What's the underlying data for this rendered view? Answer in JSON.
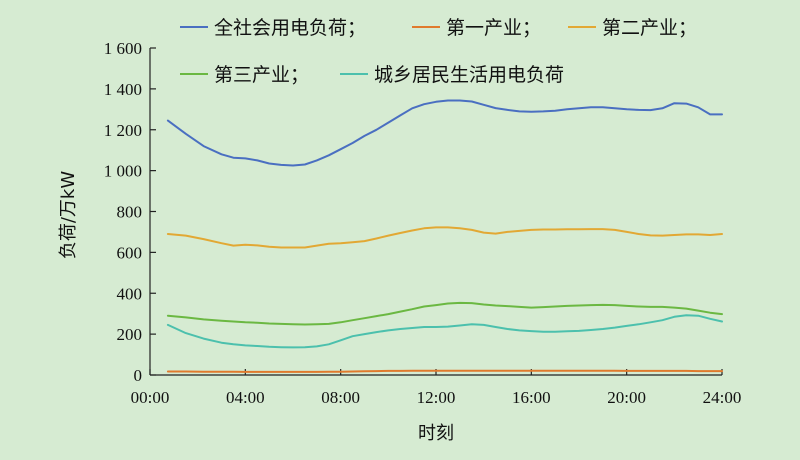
{
  "chart_data": {
    "type": "line",
    "xlabel": "时刻",
    "ylabel": "负荷/万kW",
    "x_ticks": [
      "00:00",
      "04:00",
      "08:00",
      "12:00",
      "16:00",
      "20:00",
      "24:00"
    ],
    "y_ticks": [
      "0",
      "200",
      "400",
      "600",
      "800",
      "1 000",
      "1 200",
      "1 400",
      "1 600"
    ],
    "xlim": [
      0,
      24
    ],
    "ylim": [
      0,
      1600
    ],
    "grid": false,
    "legend_position": "top",
    "legend_rows": [
      [
        "全社会用电负荷；",
        "第一产业；",
        "第二产业；"
      ],
      [
        "第三产业；",
        "城乡居民生活用电负荷"
      ]
    ],
    "x": [
      0.75,
      1.5,
      2.25,
      3,
      3.5,
      4,
      4.5,
      5,
      5.5,
      6,
      6.5,
      7,
      7.5,
      8,
      8.5,
      9,
      9.5,
      10,
      10.5,
      11,
      11.5,
      12,
      12.5,
      13,
      13.5,
      14,
      14.5,
      15,
      15.5,
      16,
      16.5,
      17,
      17.5,
      18,
      18.5,
      19,
      19.5,
      20,
      20.5,
      21,
      21.5,
      22,
      22.5,
      23,
      23.5,
      24
    ],
    "series": [
      {
        "name": "全社会用电负荷；",
        "color": "#4a6fc1",
        "values": [
          1245,
          1180,
          1120,
          1080,
          1063,
          1060,
          1050,
          1035,
          1028,
          1025,
          1030,
          1050,
          1075,
          1105,
          1135,
          1170,
          1200,
          1235,
          1270,
          1305,
          1325,
          1337,
          1343,
          1343,
          1338,
          1322,
          1306,
          1297,
          1290,
          1288,
          1290,
          1293,
          1300,
          1305,
          1310,
          1310,
          1305,
          1300,
          1297,
          1296,
          1305,
          1330,
          1328,
          1310,
          1275,
          1275
        ]
      },
      {
        "name": "第一产业；",
        "color": "#e07a2d",
        "values": [
          17,
          17,
          16,
          16,
          16,
          15,
          15,
          15,
          15,
          15,
          15,
          15,
          16,
          16,
          17,
          18,
          19,
          20,
          20,
          21,
          21,
          21,
          21,
          21,
          21,
          21,
          21,
          21,
          21,
          21,
          21,
          21,
          21,
          21,
          21,
          21,
          21,
          20,
          20,
          20,
          20,
          20,
          20,
          19,
          19,
          19
        ]
      },
      {
        "name": "第二产业；",
        "color": "#e2a834",
        "values": [
          690,
          682,
          665,
          645,
          633,
          637,
          634,
          628,
          624,
          624,
          624,
          633,
          642,
          645,
          650,
          655,
          668,
          682,
          695,
          707,
          718,
          722,
          722,
          718,
          710,
          697,
          692,
          700,
          705,
          710,
          712,
          712,
          713,
          713,
          714,
          714,
          710,
          700,
          690,
          683,
          682,
          685,
          688,
          688,
          685,
          690
        ]
      },
      {
        "name": "第三产业；",
        "color": "#6bb842",
        "values": [
          290,
          282,
          272,
          265,
          262,
          258,
          256,
          252,
          250,
          248,
          247,
          248,
          250,
          258,
          268,
          278,
          288,
          298,
          310,
          322,
          335,
          342,
          350,
          353,
          352,
          345,
          340,
          337,
          333,
          330,
          332,
          335,
          338,
          340,
          342,
          343,
          342,
          338,
          335,
          333,
          333,
          330,
          325,
          315,
          305,
          298
        ]
      },
      {
        "name": "城乡居民生活用电负荷",
        "color": "#4cc0ad",
        "values": [
          245,
          205,
          178,
          158,
          150,
          145,
          142,
          138,
          136,
          135,
          136,
          140,
          150,
          170,
          190,
          200,
          210,
          218,
          225,
          230,
          235,
          235,
          237,
          242,
          248,
          245,
          235,
          225,
          218,
          215,
          212,
          212,
          214,
          216,
          220,
          225,
          232,
          240,
          248,
          258,
          268,
          285,
          292,
          290,
          275,
          262
        ]
      }
    ]
  }
}
